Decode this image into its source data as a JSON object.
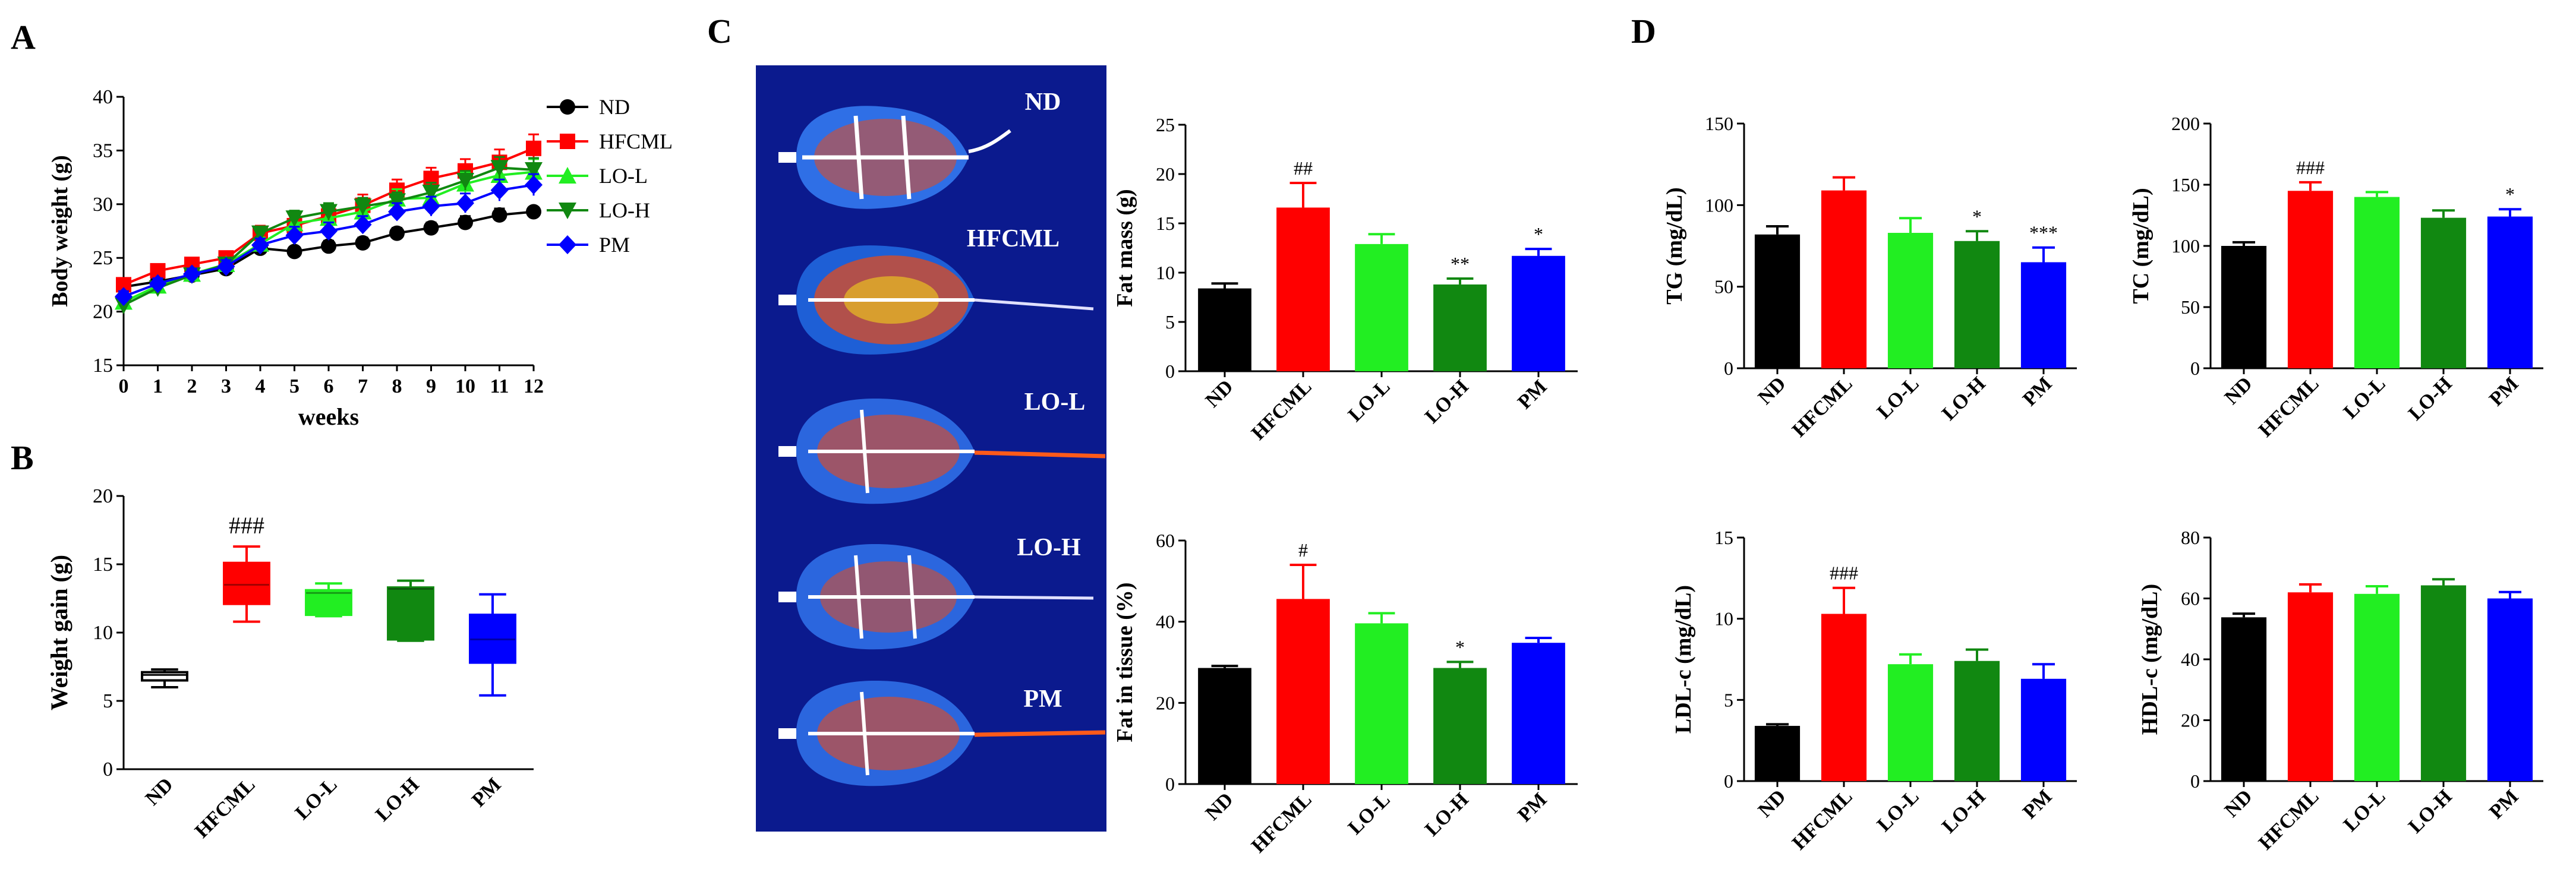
{
  "figure": {
    "panel_labels": [
      "A",
      "B",
      "C",
      "D"
    ],
    "groups": [
      "ND",
      "HFCML",
      "LO-L",
      "LO-H",
      "PM"
    ],
    "colors": {
      "ND": "#000000",
      "HFCML": "#ff0000",
      "LO-L": "#22ee22",
      "LO-H": "#118811",
      "PM": "#0000ff",
      "imaging_background": "#0b1a8e"
    },
    "icons": {
      "ND": "circle-marker",
      "HFCML": "square-marker",
      "LO-L": "triangle-up-marker",
      "LO-H": "triangle-down-marker",
      "PM": "diamond-marker"
    },
    "image_labels": [
      "ND",
      "HFCML",
      "LO-L",
      "LO-H",
      "PM"
    ]
  },
  "chart_data": [
    {
      "id": "A",
      "type": "line",
      "title": "",
      "xlabel": "weeks",
      "ylabel": "Body weight (g)",
      "x": [
        0,
        1,
        2,
        3,
        4,
        5,
        6,
        7,
        8,
        9,
        10,
        11,
        12
      ],
      "xticks": [
        "0",
        "1",
        "2",
        "3",
        "4",
        "5",
        "6",
        "7",
        "8",
        "9",
        "10",
        "11",
        "12"
      ],
      "ylim": [
        15,
        40
      ],
      "yticks": [
        "15",
        "20",
        "25",
        "30",
        "35",
        "40"
      ],
      "legend": "right",
      "series": [
        {
          "name": "ND",
          "values": [
            22.3,
            22.8,
            23.4,
            24.0,
            25.9,
            25.6,
            26.1,
            26.4,
            27.3,
            27.8,
            28.3,
            29.0,
            29.3
          ],
          "errors": [
            0.4,
            0.4,
            0.4,
            0.4,
            0.4,
            0.4,
            0.5,
            0.5,
            0.5,
            0.5,
            0.6,
            0.6,
            0.4
          ]
        },
        {
          "name": "HFCML",
          "values": [
            22.5,
            23.8,
            24.4,
            25.0,
            27.3,
            28.0,
            28.9,
            29.9,
            31.3,
            32.4,
            33.1,
            33.9,
            35.2
          ],
          "errors": [
            0.5,
            0.6,
            0.6,
            0.6,
            0.7,
            0.8,
            0.9,
            1.0,
            1.0,
            1.0,
            1.1,
            1.2,
            1.3
          ]
        },
        {
          "name": "LO-L",
          "values": [
            20.9,
            22.4,
            23.5,
            24.4,
            26.3,
            28.2,
            28.7,
            29.3,
            30.5,
            30.6,
            31.9,
            32.7,
            33.0
          ],
          "errors": [
            0.5,
            0.5,
            0.5,
            0.6,
            0.6,
            1.0,
            0.9,
            0.9,
            0.9,
            1.0,
            1.1,
            1.1,
            1.2
          ]
        },
        {
          "name": "LO-H",
          "values": [
            20.6,
            22.2,
            23.4,
            24.4,
            27.3,
            28.7,
            29.3,
            29.8,
            30.3,
            31.1,
            32.2,
            33.4,
            33.2
          ],
          "errors": [
            0.5,
            0.5,
            0.5,
            0.5,
            0.5,
            0.7,
            0.8,
            0.8,
            0.8,
            0.9,
            0.9,
            1.0,
            1.1
          ]
        },
        {
          "name": "PM",
          "values": [
            21.4,
            22.6,
            23.5,
            24.2,
            26.2,
            27.1,
            27.5,
            28.1,
            29.3,
            29.8,
            30.1,
            31.3,
            31.8
          ],
          "errors": [
            0.5,
            0.5,
            0.5,
            0.6,
            0.6,
            0.8,
            0.8,
            0.8,
            0.8,
            0.9,
            0.9,
            1.0,
            1.0
          ]
        }
      ]
    },
    {
      "id": "B",
      "type": "box",
      "title": "",
      "ylabel": "Weight gain (g)",
      "categories": [
        "ND",
        "HFCML",
        "LO-L",
        "LO-H",
        "PM"
      ],
      "ylim": [
        0,
        20
      ],
      "yticks": [
        "0",
        "5",
        "10",
        "15",
        "20"
      ],
      "boxes": [
        {
          "min": 6.0,
          "q1": 6.5,
          "median": 6.9,
          "q3": 7.1,
          "max": 7.3
        },
        {
          "min": 10.8,
          "q1": 12.1,
          "median": 13.5,
          "q3": 15.1,
          "max": 16.3
        },
        {
          "min": 11.2,
          "q1": 11.3,
          "median": 12.9,
          "q3": 13.1,
          "max": 13.6
        },
        {
          "min": 9.4,
          "q1": 9.5,
          "median": 13.2,
          "q3": 13.3,
          "max": 13.8
        },
        {
          "min": 5.4,
          "q1": 7.8,
          "median": 9.5,
          "q3": 11.3,
          "max": 12.8
        }
      ],
      "annotations": [
        "",
        "###",
        "",
        "",
        ""
      ]
    },
    {
      "id": "C-fat-mass",
      "type": "bar",
      "title": "",
      "ylabel": "Fat mass (g)",
      "categories": [
        "ND",
        "HFCML",
        "LO-L",
        "LO-H",
        "PM"
      ],
      "values": [
        8.4,
        16.6,
        12.9,
        8.8,
        11.7
      ],
      "errors": [
        0.5,
        2.5,
        1.0,
        0.6,
        0.7
      ],
      "ylim": [
        0,
        25
      ],
      "yticks": [
        "0",
        "5",
        "10",
        "15",
        "20",
        "25"
      ],
      "annotations": [
        "",
        "##",
        "",
        "**",
        "*"
      ]
    },
    {
      "id": "C-fat-tissue",
      "type": "bar",
      "title": "",
      "ylabel": "Fat in tissue (%)",
      "categories": [
        "ND",
        "HFCML",
        "LO-L",
        "LO-H",
        "PM"
      ],
      "values": [
        28.6,
        45.6,
        39.6,
        28.6,
        34.8
      ],
      "errors": [
        0.5,
        8.4,
        2.5,
        1.5,
        1.2
      ],
      "ylim": [
        0,
        60
      ],
      "yticks": [
        "0",
        "20",
        "40",
        "60"
      ],
      "annotations": [
        "",
        "#",
        "",
        "*",
        ""
      ]
    },
    {
      "id": "D-TG",
      "type": "bar",
      "title": "",
      "ylabel": "TG (mg/dL)",
      "categories": [
        "ND",
        "HFCML",
        "LO-L",
        "LO-H",
        "PM"
      ],
      "values": [
        82,
        109,
        83,
        78,
        65
      ],
      "errors": [
        5,
        8,
        9,
        6,
        9
      ],
      "ylim": [
        0,
        150
      ],
      "yticks": [
        "0",
        "50",
        "100",
        "150"
      ],
      "annotations": [
        "",
        "",
        "",
        "*",
        "***"
      ]
    },
    {
      "id": "D-TC",
      "type": "bar",
      "title": "",
      "ylabel": "TC (mg/dL)",
      "categories": [
        "ND",
        "HFCML",
        "LO-L",
        "LO-H",
        "PM"
      ],
      "values": [
        100,
        145,
        140,
        123,
        124
      ],
      "errors": [
        3,
        7,
        4,
        6,
        6
      ],
      "ylim": [
        0,
        200
      ],
      "yticks": [
        "0",
        "50",
        "100",
        "150",
        "200"
      ],
      "annotations": [
        "",
        "###",
        "",
        "",
        "*"
      ]
    },
    {
      "id": "D-LDL",
      "type": "bar",
      "title": "",
      "ylabel": "LDL-c (mg/dL)",
      "categories": [
        "ND",
        "HFCML",
        "LO-L",
        "LO-H",
        "PM"
      ],
      "values": [
        3.4,
        10.3,
        7.2,
        7.4,
        6.3
      ],
      "errors": [
        0.1,
        1.6,
        0.6,
        0.7,
        0.9
      ],
      "ylim": [
        0,
        15
      ],
      "yticks": [
        "0",
        "5",
        "10",
        "15"
      ],
      "annotations": [
        "",
        "###",
        "",
        "",
        ""
      ]
    },
    {
      "id": "D-HDL",
      "type": "bar",
      "title": "",
      "ylabel": "HDL-c (mg/dL)",
      "categories": [
        "ND",
        "HFCML",
        "LO-L",
        "LO-H",
        "PM"
      ],
      "values": [
        53.8,
        62.0,
        61.5,
        64.3,
        60.0
      ],
      "errors": [
        1.2,
        2.6,
        2.5,
        2.0,
        2.1
      ],
      "ylim": [
        0,
        80
      ],
      "yticks": [
        "0",
        "20",
        "40",
        "60",
        "80"
      ],
      "annotations": [
        "",
        "",
        "",
        "",
        ""
      ]
    }
  ]
}
